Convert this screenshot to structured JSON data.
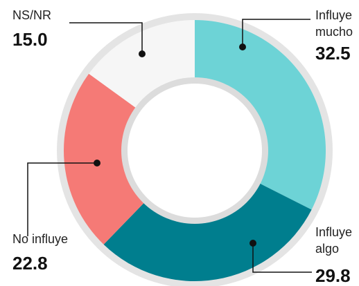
{
  "chart_data": {
    "type": "donut",
    "categories": [
      "Influye mucho",
      "Influye algo",
      "No influye",
      "NS/NR"
    ],
    "values": [
      32.5,
      29.8,
      22.8,
      15.0
    ],
    "value_labels": [
      "32.5",
      "29.8",
      "22.8",
      "15.0"
    ],
    "colors": [
      "#6dd3d6",
      "#007e8e",
      "#f57a76",
      "#f6f6f6"
    ]
  }
}
